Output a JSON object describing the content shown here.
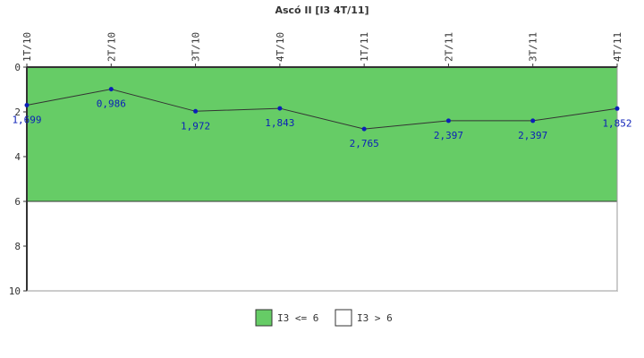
{
  "chart_data": {
    "type": "line",
    "title": "Ascó II [I3 4T/11]",
    "categories": [
      "1T/10",
      "2T/10",
      "3T/10",
      "4T/10",
      "1T/11",
      "2T/11",
      "3T/11",
      "4T/11"
    ],
    "series": [
      {
        "values": [
          1.699,
          0.986,
          1.972,
          1.843,
          2.765,
          2.397,
          2.397,
          1.852
        ],
        "labels": [
          "1,699",
          "0,986",
          "1,972",
          "1,843",
          "2,765",
          "2,397",
          "2,397",
          "1,852"
        ],
        "color": "#0b1fb8"
      }
    ],
    "yticks": [
      "0",
      "2",
      "4",
      "6",
      "8",
      "10"
    ],
    "ylim": [
      0,
      10
    ],
    "yaxis_inverted": true,
    "bands": [
      {
        "from": 0,
        "to": 6,
        "color": "#66cc66",
        "label": "I3 <= 6"
      },
      {
        "from": 6,
        "to": 10,
        "color": "#ffffff",
        "label": "I3 > 6"
      }
    ],
    "grid": false,
    "legend_position": "bottom-center",
    "colors": {
      "line": "#333333",
      "marker": "#0b1fb8",
      "band_ok": "#66cc66",
      "band_bad": "#ffffff"
    }
  }
}
